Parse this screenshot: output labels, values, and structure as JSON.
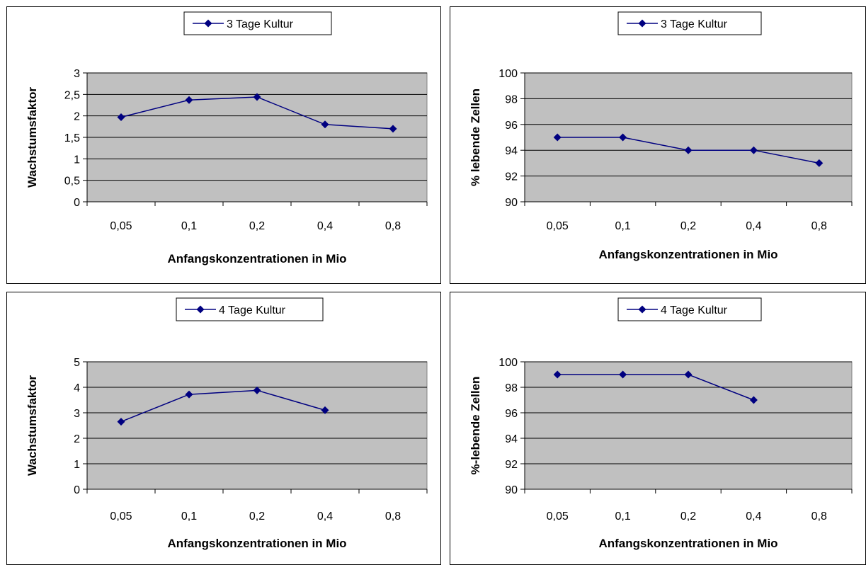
{
  "chart_data": [
    {
      "type": "line",
      "categories": [
        "0,05",
        "0,1",
        "0,2",
        "0,4",
        "0,8"
      ],
      "series": [
        {
          "name": "3 Tage Kultur",
          "values": [
            1.97,
            2.37,
            2.44,
            1.8,
            1.7
          ]
        }
      ],
      "xlabel": "Anfangskonzentrationen in Mio",
      "ylabel": "Wachstumsfaktor",
      "ylim": [
        0,
        3
      ],
      "yticks": [
        "0",
        "0,5",
        "1",
        "1,5",
        "2",
        "2,5",
        "3"
      ],
      "grid": true,
      "legend": "top"
    },
    {
      "type": "line",
      "categories": [
        "0,05",
        "0,1",
        "0,2",
        "0,4",
        "0,8"
      ],
      "series": [
        {
          "name": "3 Tage Kultur",
          "values": [
            95,
            95,
            94,
            94,
            93
          ]
        }
      ],
      "xlabel": "Anfangskonzentrationen in Mio",
      "ylabel": "% lebende Zellen",
      "ylim": [
        90,
        100
      ],
      "yticks": [
        "90",
        "92",
        "94",
        "96",
        "98",
        "100"
      ],
      "grid": true,
      "legend": "top"
    },
    {
      "type": "line",
      "categories": [
        "0,05",
        "0,1",
        "0,2",
        "0,4",
        "0,8"
      ],
      "series": [
        {
          "name": "4 Tage Kultur",
          "values": [
            2.65,
            3.72,
            3.88,
            3.1,
            null
          ]
        }
      ],
      "xlabel": "Anfangskonzentrationen in Mio",
      "ylabel": "Wachstumsfaktor",
      "ylim": [
        0,
        5
      ],
      "yticks": [
        "0",
        "1",
        "2",
        "3",
        "4",
        "5"
      ],
      "grid": true,
      "legend": "top"
    },
    {
      "type": "line",
      "categories": [
        "0,05",
        "0,1",
        "0,2",
        "0,4",
        "0,8"
      ],
      "series": [
        {
          "name": "4 Tage Kultur",
          "values": [
            99,
            99,
            99,
            97,
            null
          ]
        }
      ],
      "xlabel": "Anfangskonzentrationen in Mio",
      "ylabel": "%-lebende Zellen",
      "ylim": [
        90,
        100
      ],
      "yticks": [
        "90",
        "92",
        "94",
        "96",
        "98",
        "100"
      ],
      "grid": true,
      "legend": "top"
    }
  ],
  "colors": {
    "series": "#000080",
    "plot_area": "#c0c0c0",
    "gridline": "#000000"
  }
}
